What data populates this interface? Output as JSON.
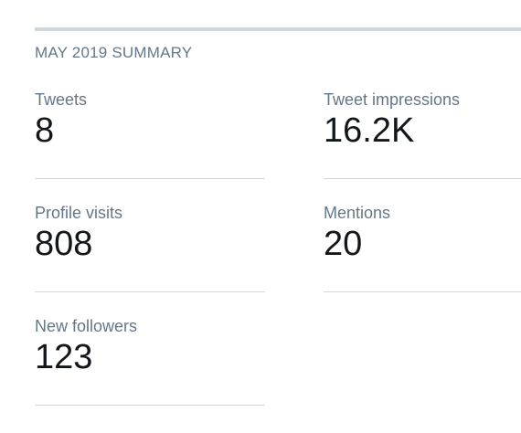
{
  "summary": {
    "title": "MAY 2019 SUMMARY"
  },
  "stats": {
    "tweets": {
      "label": "Tweets",
      "value": "8"
    },
    "tweet_impressions": {
      "label": "Tweet impressions",
      "value": "16.2K"
    },
    "profile_visits": {
      "label": "Profile visits",
      "value": "808"
    },
    "mentions": {
      "label": "Mentions",
      "value": "20"
    },
    "new_followers": {
      "label": "New followers",
      "value": "123"
    }
  },
  "colors": {
    "label": "#657786",
    "value": "#14171a",
    "divider": "#ccd6dd"
  }
}
